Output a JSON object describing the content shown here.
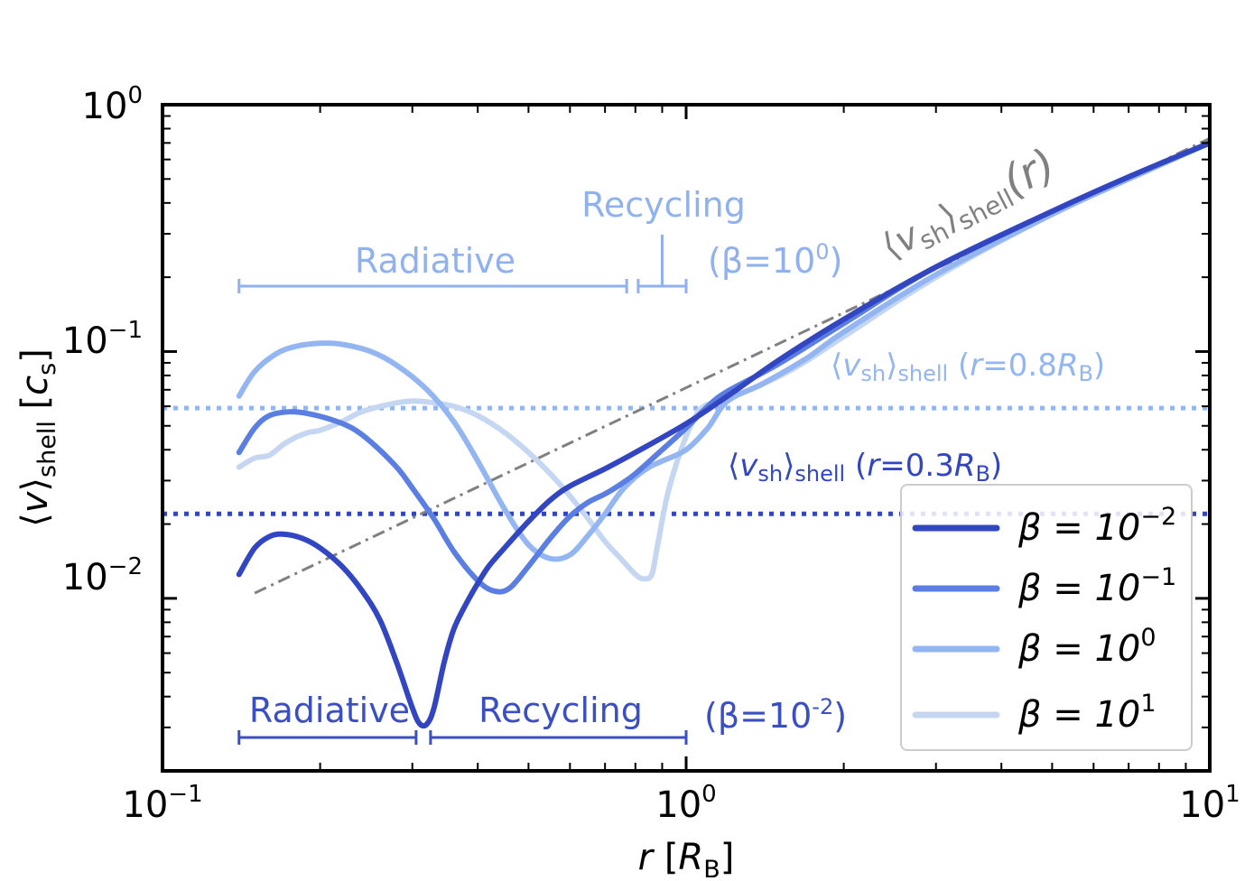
{
  "chart_data": {
    "type": "line",
    "xscale": "log",
    "yscale": "log",
    "xlim": [
      0.1,
      10
    ],
    "ylim": [
      0.002,
      1
    ],
    "xlabel": {
      "var": "r",
      "unit_open": "[",
      "unit": "R",
      "unit_sub": "B",
      "unit_close": "]"
    },
    "ylabel": {
      "open": "⟨",
      "var": "v",
      "close": "⟩",
      "sub": "shell",
      "unit_open": "[",
      "unit": "c",
      "unit_sub": "s",
      "unit_close": "]"
    },
    "x_ticks": [
      {
        "value": 0.1,
        "base": "10",
        "exp": "−1"
      },
      {
        "value": 1,
        "base": "10",
        "exp": "0"
      },
      {
        "value": 10,
        "base": "10",
        "exp": "1"
      }
    ],
    "y_ticks": [
      {
        "value": 0.01,
        "base": "10",
        "exp": "−2"
      },
      {
        "value": 0.1,
        "base": "10",
        "exp": "−1"
      },
      {
        "value": 1,
        "base": "10",
        "exp": "0"
      }
    ],
    "series": [
      {
        "name": "β = 10^-2",
        "label_base": "β = 10",
        "label_exp": "−2",
        "color": "#3346c2",
        "x": [
          0.14,
          0.15,
          0.16,
          0.17,
          0.185,
          0.2,
          0.22,
          0.24,
          0.26,
          0.28,
          0.3,
          0.31,
          0.32,
          0.33,
          0.345,
          0.36,
          0.38,
          0.4,
          0.42,
          0.45,
          0.5,
          0.55,
          0.6,
          0.7,
          0.8,
          1.0,
          1.2,
          1.5,
          2.0,
          3.0,
          5.0,
          7.0,
          10.0
        ],
        "y": [
          0.0125,
          0.016,
          0.0178,
          0.0182,
          0.0175,
          0.016,
          0.0135,
          0.0108,
          0.0082,
          0.0055,
          0.0036,
          0.0031,
          0.0031,
          0.0036,
          0.0055,
          0.0075,
          0.0095,
          0.0115,
          0.0135,
          0.016,
          0.0205,
          0.025,
          0.0285,
          0.0335,
          0.039,
          0.051,
          0.066,
          0.092,
          0.135,
          0.22,
          0.37,
          0.51,
          0.7
        ]
      },
      {
        "name": "β = 10^-1",
        "label_base": "β = 10",
        "label_exp": "−1",
        "color": "#5a7ee2",
        "x": [
          0.14,
          0.15,
          0.16,
          0.175,
          0.19,
          0.21,
          0.23,
          0.25,
          0.28,
          0.3,
          0.33,
          0.36,
          0.4,
          0.43,
          0.46,
          0.5,
          0.55,
          0.6,
          0.65,
          0.7,
          0.75,
          0.8,
          0.9,
          1.0,
          1.1,
          1.2,
          1.5,
          2.0,
          3.0,
          5.0,
          7.0,
          10.0
        ],
        "y": [
          0.039,
          0.049,
          0.055,
          0.057,
          0.056,
          0.053,
          0.049,
          0.043,
          0.034,
          0.028,
          0.021,
          0.0155,
          0.0118,
          0.0107,
          0.011,
          0.0135,
          0.0175,
          0.0215,
          0.0245,
          0.0265,
          0.029,
          0.032,
          0.04,
          0.049,
          0.06,
          0.069,
          0.089,
          0.13,
          0.22,
          0.37,
          0.51,
          0.7
        ]
      },
      {
        "name": "β = 10^0",
        "label_base": "β = 10",
        "label_exp": "0",
        "color": "#93b6f3",
        "x": [
          0.14,
          0.15,
          0.165,
          0.18,
          0.2,
          0.22,
          0.25,
          0.28,
          0.32,
          0.36,
          0.4,
          0.45,
          0.5,
          0.55,
          0.6,
          0.65,
          0.7,
          0.75,
          0.8,
          0.85,
          0.9,
          1.0,
          1.1,
          1.2,
          1.4,
          1.7,
          2.0,
          3.0,
          5.0,
          7.0,
          10.0
        ],
        "y": [
          0.066,
          0.083,
          0.098,
          0.105,
          0.108,
          0.107,
          0.1,
          0.088,
          0.07,
          0.052,
          0.036,
          0.023,
          0.0165,
          0.0145,
          0.015,
          0.018,
          0.022,
          0.027,
          0.031,
          0.034,
          0.036,
          0.04,
          0.049,
          0.063,
          0.074,
          0.094,
          0.12,
          0.205,
          0.36,
          0.5,
          0.7
        ]
      },
      {
        "name": "β = 10^1",
        "label_base": "β = 10",
        "label_exp": "1",
        "color": "#c5d6f2",
        "x": [
          0.14,
          0.15,
          0.16,
          0.17,
          0.18,
          0.19,
          0.2,
          0.22,
          0.24,
          0.27,
          0.3,
          0.33,
          0.36,
          0.4,
          0.45,
          0.5,
          0.55,
          0.6,
          0.65,
          0.7,
          0.75,
          0.8,
          0.83,
          0.86,
          0.88,
          0.92,
          0.97,
          1.02,
          1.07,
          1.15,
          1.3,
          1.6,
          2.0,
          3.0,
          5.0,
          7.0,
          10.0
        ],
        "y": [
          0.034,
          0.037,
          0.038,
          0.042,
          0.045,
          0.047,
          0.048,
          0.052,
          0.057,
          0.061,
          0.063,
          0.062,
          0.06,
          0.055,
          0.047,
          0.039,
          0.032,
          0.026,
          0.021,
          0.017,
          0.0145,
          0.0125,
          0.012,
          0.0125,
          0.016,
          0.026,
          0.038,
          0.05,
          0.059,
          0.063,
          0.069,
          0.085,
          0.115,
          0.2,
          0.36,
          0.5,
          0.7
        ]
      }
    ],
    "reference_line": {
      "name": "⟨v_sh⟩_shell(r)",
      "color": "#808080",
      "style": "dashdot",
      "x": [
        0.15,
        10.0
      ],
      "y": [
        0.0105,
        0.73
      ],
      "label": {
        "open": "⟨",
        "var": "v",
        "sub": "sh",
        "close": "⟩",
        "sub2": "shell",
        "arg": "(r)"
      }
    },
    "hlines": [
      {
        "name": "⟨v_sh⟩_shell(r=0.8R_B)",
        "y": 0.059,
        "color": "#93b6f3",
        "style": "dotted",
        "label": {
          "open": "⟨",
          "var": "v",
          "sub": "sh",
          "close": "⟩",
          "sub2": "shell",
          "arg_open": " (",
          "arg_var": "r",
          "arg_eq": "=0.8",
          "arg_R": "R",
          "arg_Rsub": "B",
          "arg_close": ")"
        }
      },
      {
        "name": "⟨v_sh⟩_shell(r=0.3R_B)",
        "y": 0.022,
        "color": "#3346c2",
        "style": "dotted",
        "label": {
          "open": "⟨",
          "var": "v",
          "sub": "sh",
          "close": "⟩",
          "sub2": "shell",
          "arg_open": " (",
          "arg_var": "r",
          "arg_eq": "=0.3",
          "arg_R": "R",
          "arg_Rsub": "B",
          "arg_close": ")"
        }
      }
    ],
    "annotations": {
      "beta_1": {
        "color": "#8fb1ee",
        "radiative_label": "Radiative",
        "radiative_range": [
          0.14,
          0.77
        ],
        "recycling_label": "Recycling",
        "recycling_range": [
          0.81,
          1.0
        ],
        "beta_open": "(β=10",
        "beta_exp": "0",
        "beta_close": ")"
      },
      "beta_2": {
        "color": "#3a4fc4",
        "radiative_label": "Radiative",
        "radiative_range": [
          0.14,
          0.305
        ],
        "recycling_label": "Recycling",
        "recycling_range": [
          0.325,
          1.0
        ],
        "beta_open": "(β=10",
        "beta_exp": "-2",
        "beta_close": ")"
      }
    },
    "legend": {
      "placement": "lower-right"
    }
  }
}
